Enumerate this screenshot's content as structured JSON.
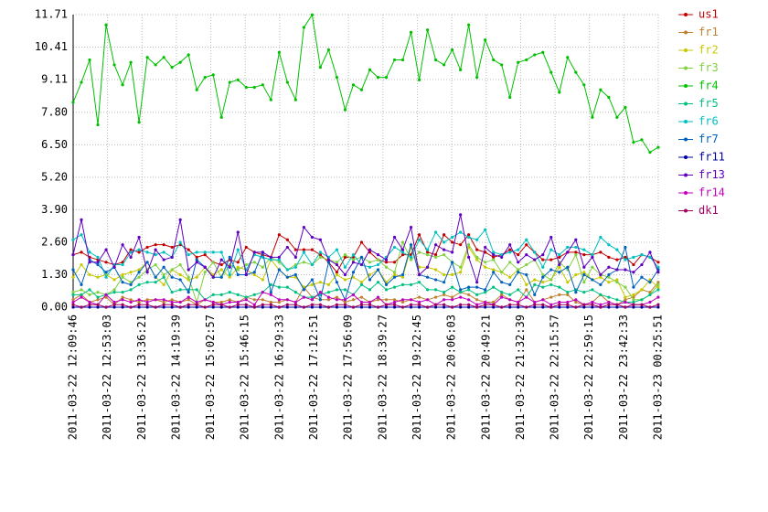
{
  "chart_data": {
    "type": "line",
    "x": [
      "2011-03-22 12:09:46",
      "2011-03-22 12:20:08",
      "2011-03-22 12:30:30",
      "2011-03-22 12:40:52",
      "2011-03-22 12:51:14",
      "2011-03-22 13:01:36",
      "2011-03-22 13:11:58",
      "2011-03-22 13:22:20",
      "2011-03-22 13:32:42",
      "2011-03-22 13:43:04",
      "2011-03-22 13:53:26",
      "2011-03-22 14:03:48",
      "2011-03-22 14:14:10",
      "2011-03-22 14:24:32",
      "2011-03-22 14:34:54",
      "2011-03-22 14:45:16",
      "2011-03-22 14:55:38",
      "2011-03-22 15:06:00",
      "2011-03-22 15:16:22",
      "2011-03-22 15:26:44",
      "2011-03-22 15:37:06",
      "2011-03-22 15:47:28",
      "2011-03-22 15:57:50",
      "2011-03-22 16:08:12",
      "2011-03-22 16:18:34",
      "2011-03-22 16:28:56",
      "2011-03-22 16:39:18",
      "2011-03-22 16:49:40",
      "2011-03-22 17:00:02",
      "2011-03-22 17:10:24",
      "2011-03-22 17:20:46",
      "2011-03-22 17:31:08",
      "2011-03-22 17:41:30",
      "2011-03-22 17:51:52",
      "2011-03-22 18:02:14",
      "2011-03-22 18:12:36",
      "2011-03-22 18:22:58",
      "2011-03-22 18:33:20",
      "2011-03-22 18:43:42",
      "2011-03-22 18:54:04",
      "2011-03-22 19:04:26",
      "2011-03-22 19:14:48",
      "2011-03-22 19:25:10",
      "2011-03-22 19:35:32",
      "2011-03-22 19:45:54",
      "2011-03-22 19:56:16",
      "2011-03-22 20:06:38",
      "2011-03-22 20:17:00",
      "2011-03-22 20:27:22",
      "2011-03-22 20:37:44",
      "2011-03-22 20:48:06",
      "2011-03-22 20:58:28",
      "2011-03-22 21:08:50",
      "2011-03-22 21:19:12",
      "2011-03-22 21:29:34",
      "2011-03-22 21:39:56",
      "2011-03-22 21:50:18",
      "2011-03-22 22:00:40",
      "2011-03-22 22:11:02",
      "2011-03-22 22:21:24",
      "2011-03-22 22:31:46",
      "2011-03-22 22:42:08",
      "2011-03-22 22:52:30",
      "2011-03-22 23:02:52",
      "2011-03-22 23:13:14",
      "2011-03-22 23:23:36",
      "2011-03-22 23:33:58",
      "2011-03-22 23:44:20",
      "2011-03-22 23:54:42",
      "2011-03-23 00:05:04",
      "2011-03-23 00:15:26",
      "2011-03-23 00:25:48"
    ],
    "xlim": [
      "2011-03-22 12:09:46",
      "2011-03-23 00:25:51"
    ],
    "xticks": [
      "2011-03-22 12:09:46",
      "2011-03-22 12:53:03",
      "2011-03-22 13:36:21",
      "2011-03-22 14:19:39",
      "2011-03-22 15:02:57",
      "2011-03-22 15:46:15",
      "2011-03-22 16:29:33",
      "2011-03-22 17:12:51",
      "2011-03-22 17:56:09",
      "2011-03-22 18:39:27",
      "2011-03-22 19:22:45",
      "2011-03-22 20:06:03",
      "2011-03-22 20:49:21",
      "2011-03-22 21:32:39",
      "2011-03-22 22:15:57",
      "2011-03-22 22:59:15",
      "2011-03-22 23:42:33",
      "2011-03-23 00:25:51"
    ],
    "ylim": [
      0,
      11.71
    ],
    "yticks": [
      {
        "value": 0,
        "label": "0.00"
      },
      {
        "value": 1.3,
        "label": "1.30"
      },
      {
        "value": 2.6,
        "label": "2.60"
      },
      {
        "value": 3.9,
        "label": "3.90"
      },
      {
        "value": 5.2,
        "label": "5.20"
      },
      {
        "value": 6.5,
        "label": "6.50"
      },
      {
        "value": 7.8,
        "label": "7.80"
      },
      {
        "value": 9.11,
        "label": "9.11"
      },
      {
        "value": 10.41,
        "label": "10.41"
      },
      {
        "value": 11.71,
        "label": "11.71"
      }
    ],
    "grid": true,
    "legend": "right",
    "series": [
      {
        "name": "us1",
        "color": "#c00000",
        "values": [
          2.1,
          2.2,
          2.0,
          1.9,
          1.8,
          1.7,
          1.8,
          2.3,
          2.2,
          2.4,
          2.5,
          2.5,
          2.4,
          2.5,
          2.3,
          2.0,
          2.1,
          1.8,
          1.7,
          1.9,
          1.8,
          2.4,
          2.2,
          2.1,
          2.0,
          2.9,
          2.7,
          2.3,
          2.3,
          2.3,
          2.1,
          1.8,
          1.4,
          2.0,
          2.0,
          2.6,
          2.2,
          1.9,
          1.8,
          1.8,
          2.1,
          2.1,
          2.9,
          2.2,
          2.1,
          2.9,
          2.6,
          2.5,
          2.9,
          2.3,
          2.2,
          2.0,
          2.1,
          2.3,
          2.1,
          2.5,
          2.2,
          1.9,
          1.9,
          2.0,
          2.2,
          2.2,
          2.1,
          2.1,
          2.2,
          2.0,
          1.9,
          2.0,
          1.7,
          2.1,
          2.0,
          1.8
        ]
      },
      {
        "name": "fr1",
        "color": "#c08030",
        "values": [
          0.3,
          0.5,
          0.2,
          0.3,
          0.4,
          0.1,
          0.4,
          0.3,
          0.2,
          0.3,
          0.3,
          0.2,
          0.3,
          0.2,
          0.3,
          0.1,
          0.3,
          0.2,
          0.2,
          0.3,
          0.2,
          0.4,
          0.3,
          0.3,
          0.2,
          0.2,
          0.3,
          0.2,
          0.8,
          0.4,
          0.3,
          0.3,
          0.4,
          0.2,
          0.3,
          0.4,
          0.2,
          0.3,
          0.3,
          0.3,
          0.2,
          0.3,
          0.4,
          0.3,
          0.4,
          0.5,
          0.4,
          0.6,
          0.5,
          0.3,
          0.2,
          0.2,
          0.5,
          0.3,
          0.2,
          0.7,
          0.2,
          0.3,
          0.4,
          0.5,
          0.5,
          0.2,
          0.1,
          0.2,
          0.5,
          0.2,
          0.1,
          0.3,
          0.4,
          0.7,
          0.6,
          1.0
        ]
      },
      {
        "name": "fr2",
        "color": "#c8c800",
        "values": [
          1.2,
          1.7,
          1.3,
          1.2,
          1.3,
          1.1,
          1.3,
          1.4,
          1.5,
          1.8,
          1.2,
          0.9,
          1.5,
          1.3,
          1.1,
          1.2,
          1.6,
          1.3,
          1.5,
          1.2,
          1.6,
          1.5,
          1.3,
          1.1,
          1.9,
          1.5,
          1.2,
          1.2,
          0.8,
          0.9,
          1.0,
          0.9,
          1.3,
          1.1,
          1.2,
          1.0,
          1.3,
          1.5,
          1.0,
          1.3,
          1.2,
          2.4,
          1.6,
          1.6,
          1.5,
          1.3,
          1.3,
          1.4,
          2.4,
          1.9,
          1.6,
          1.5,
          1.4,
          1.2,
          1.5,
          0.9,
          1.1,
          1.0,
          1.1,
          1.6,
          1.0,
          1.3,
          1.4,
          1.1,
          1.2,
          1.0,
          1.1,
          0.4,
          0.5,
          0.7,
          1.1,
          0.8
        ]
      },
      {
        "name": "fr3",
        "color": "#80d040",
        "values": [
          0.6,
          0.7,
          0.5,
          0.6,
          0.5,
          0.7,
          1.2,
          1.0,
          1.2,
          1.5,
          1.7,
          1.3,
          1.5,
          1.7,
          1.2,
          0.2,
          1.4,
          1.8,
          1.2,
          1.7,
          1.5,
          1.7,
          1.8,
          1.6,
          2.0,
          1.8,
          1.5,
          1.7,
          1.8,
          1.7,
          2.0,
          1.9,
          1.8,
          2.1,
          1.9,
          2.0,
          1.8,
          1.9,
          1.6,
          1.4,
          2.6,
          1.9,
          2.2,
          2.1,
          2.0,
          2.1,
          1.8,
          1.6,
          2.5,
          2.0,
          1.8,
          1.9,
          1.4,
          1.8,
          1.5,
          1.7,
          1.9,
          1.3,
          1.1,
          1.8,
          1.5,
          2.1,
          1.0,
          1.6,
          1.3,
          1.2,
          1.0,
          0.8,
          0.3,
          0.3,
          0.5,
          0.9
        ]
      },
      {
        "name": "fr4",
        "color": "#00c000",
        "values": [
          8.2,
          9.0,
          9.9,
          7.3,
          11.3,
          9.7,
          8.9,
          9.8,
          7.4,
          10.0,
          9.7,
          10.0,
          9.6,
          9.8,
          10.1,
          8.7,
          9.2,
          9.3,
          7.6,
          9.0,
          9.1,
          8.8,
          8.8,
          8.9,
          8.3,
          10.2,
          9.0,
          8.3,
          11.2,
          11.7,
          9.6,
          10.3,
          9.2,
          7.9,
          8.9,
          8.7,
          9.5,
          9.2,
          9.2,
          9.9,
          9.9,
          11.0,
          9.1,
          11.1,
          9.9,
          9.7,
          10.3,
          9.5,
          11.3,
          9.2,
          10.7,
          9.9,
          9.7,
          8.4,
          9.8,
          9.9,
          10.1,
          10.2,
          9.4,
          8.6,
          10.0,
          9.4,
          8.9,
          7.6,
          8.7,
          8.4,
          7.6,
          8.0,
          6.6,
          6.7,
          6.2,
          6.4
        ]
      },
      {
        "name": "fr5",
        "color": "#00c080",
        "values": [
          0.5,
          0.5,
          0.7,
          0.4,
          0.5,
          0.6,
          0.6,
          0.7,
          0.9,
          1.0,
          1.0,
          1.2,
          0.6,
          0.7,
          0.7,
          0.7,
          0.3,
          0.5,
          0.5,
          0.6,
          0.5,
          0.4,
          0.5,
          0.6,
          0.9,
          0.8,
          0.8,
          0.6,
          0.4,
          0.4,
          0.5,
          0.6,
          0.7,
          0.7,
          0.5,
          0.9,
          0.7,
          1.0,
          0.7,
          0.8,
          0.9,
          0.9,
          1.0,
          0.7,
          0.7,
          0.6,
          0.8,
          0.6,
          0.7,
          0.5,
          0.6,
          0.8,
          0.6,
          0.5,
          0.7,
          0.4,
          0.9,
          0.8,
          0.9,
          0.8,
          0.6,
          0.7,
          0.6,
          0.7,
          0.5,
          0.4,
          0.3,
          0.2,
          0.2,
          0.3,
          0.5,
          0.7
        ]
      },
      {
        "name": "fr6",
        "color": "#00c0c0",
        "values": [
          2.7,
          2.9,
          2.2,
          2.0,
          1.2,
          1.7,
          1.7,
          2.2,
          2.3,
          2.2,
          2.1,
          2.2,
          2.0,
          2.6,
          2.1,
          2.2,
          2.2,
          2.2,
          2.2,
          1.3,
          2.3,
          1.5,
          2.1,
          2.0,
          1.9,
          1.9,
          1.5,
          1.6,
          2.2,
          1.7,
          2.2,
          2.0,
          2.3,
          1.6,
          2.1,
          1.7,
          1.6,
          1.7,
          2.0,
          2.4,
          2.2,
          2.0,
          2.7,
          2.3,
          3.0,
          2.6,
          2.8,
          3.0,
          2.8,
          2.7,
          3.1,
          2.2,
          2.1,
          2.2,
          2.3,
          2.7,
          2.2,
          1.6,
          2.3,
          2.1,
          2.4,
          2.4,
          2.3,
          2.1,
          2.8,
          2.5,
          2.3,
          1.9,
          2.0,
          2.1,
          2.0,
          1.6
        ]
      },
      {
        "name": "fr7",
        "color": "#0060c0",
        "values": [
          1.5,
          0.9,
          1.9,
          1.7,
          1.4,
          1.6,
          1.0,
          0.9,
          1.4,
          1.8,
          1.2,
          1.6,
          1.2,
          1.1,
          0.6,
          1.9,
          1.6,
          1.2,
          1.2,
          2.0,
          1.3,
          1.3,
          1.4,
          2.2,
          0.6,
          1.5,
          1.2,
          1.3,
          0.7,
          1.1,
          0.3,
          1.8,
          1.0,
          0.3,
          1.4,
          2.0,
          1.1,
          1.5,
          0.9,
          1.2,
          1.3,
          2.5,
          1.3,
          1.2,
          1.1,
          1.0,
          1.8,
          0.7,
          0.8,
          0.8,
          0.7,
          1.4,
          1.0,
          0.9,
          1.4,
          1.3,
          0.5,
          1.2,
          1.5,
          1.4,
          1.6,
          0.6,
          1.3,
          1.1,
          0.9,
          1.3,
          1.5,
          2.4,
          0.8,
          1.2,
          1.0,
          1.5
        ]
      },
      {
        "name": "fr11",
        "color": "#0000a0",
        "values": [
          0,
          0,
          0,
          0,
          0,
          0,
          0,
          0,
          0,
          0,
          0,
          0,
          0,
          0,
          0,
          0,
          0,
          0,
          0,
          0,
          0,
          0,
          0,
          0,
          0,
          0,
          0,
          0,
          0,
          0,
          0,
          0,
          0,
          0,
          0,
          0,
          0,
          0,
          0,
          0,
          0,
          0,
          0,
          0,
          0,
          0,
          0,
          0,
          0,
          0,
          0,
          0,
          0,
          0,
          0,
          0,
          0,
          0,
          0,
          0,
          0,
          0,
          0,
          0,
          0,
          0,
          0,
          0,
          0,
          0,
          0,
          0
        ]
      },
      {
        "name": "fr13",
        "color": "#6000c0",
        "values": [
          2.1,
          3.5,
          1.8,
          1.8,
          2.3,
          1.6,
          2.5,
          2.0,
          2.8,
          1.4,
          2.3,
          1.9,
          2.0,
          3.5,
          1.5,
          1.8,
          1.6,
          1.2,
          1.9,
          1.6,
          3.0,
          1.3,
          2.2,
          2.2,
          2.0,
          2.0,
          2.4,
          2.0,
          3.2,
          2.8,
          2.7,
          1.9,
          1.7,
          1.3,
          1.8,
          1.7,
          2.3,
          2.1,
          1.9,
          2.8,
          2.3,
          3.2,
          1.3,
          1.6,
          2.5,
          2.3,
          2.2,
          3.7,
          2.0,
          1.0,
          2.4,
          2.1,
          2.0,
          2.5,
          1.8,
          2.1,
          1.9,
          2.1,
          2.8,
          1.7,
          2.2,
          2.7,
          1.6,
          2.0,
          1.3,
          1.6,
          1.5,
          1.5,
          1.4,
          1.7,
          2.2,
          1.4
        ]
      },
      {
        "name": "fr14",
        "color": "#c000c0",
        "values": [
          0.2,
          0.4,
          0.2,
          0.1,
          0.5,
          0.2,
          0.3,
          0.2,
          0.3,
          0.2,
          0.3,
          0.3,
          0.2,
          0.2,
          0.4,
          0.2,
          0.3,
          0.2,
          0.1,
          0.2,
          0.2,
          0.3,
          0.1,
          0.6,
          0.5,
          0.3,
          0.3,
          0.2,
          0.4,
          0.3,
          0.6,
          0.4,
          0.3,
          0.3,
          0.5,
          0.2,
          0.2,
          0.4,
          0.1,
          0.2,
          0.3,
          0.3,
          0.2,
          0.3,
          0.1,
          0.3,
          0.3,
          0.4,
          0.3,
          0.1,
          0.2,
          0.1,
          0.4,
          0.3,
          0.2,
          0.4,
          0.2,
          0.3,
          0.1,
          0.2,
          0.2,
          0.3,
          0.1,
          0.2,
          0.1,
          0.2,
          0.1,
          0.2,
          0.1,
          0.1,
          0.2,
          0.4
        ]
      },
      {
        "name": "dk1",
        "color": "#a00060",
        "values": [
          0.1,
          0.0,
          0.1,
          0.1,
          0.0,
          0.1,
          0.1,
          0.0,
          0.1,
          0.1,
          0.0,
          0.1,
          0.1,
          0.0,
          0.1,
          0.1,
          0.0,
          0.1,
          0.1,
          0.0,
          0.1,
          0.1,
          0.0,
          0.1,
          0.1,
          0.0,
          0.1,
          0.1,
          0.0,
          0.1,
          0.1,
          0.0,
          0.1,
          0.1,
          0.0,
          0.1,
          0.1,
          0.0,
          0.1,
          0.1,
          0.0,
          0.1,
          0.1,
          0.0,
          0.1,
          0.1,
          0.0,
          0.1,
          0.1,
          0.0,
          0.1,
          0.1,
          0.0,
          0.1,
          0.1,
          0.0,
          0.1,
          0.1,
          0.0,
          0.1,
          0.1,
          0.0,
          0.1,
          0.1,
          0.0,
          0.1,
          0.1,
          0.0,
          0.1,
          0.1,
          0.0,
          0.1
        ]
      }
    ]
  }
}
